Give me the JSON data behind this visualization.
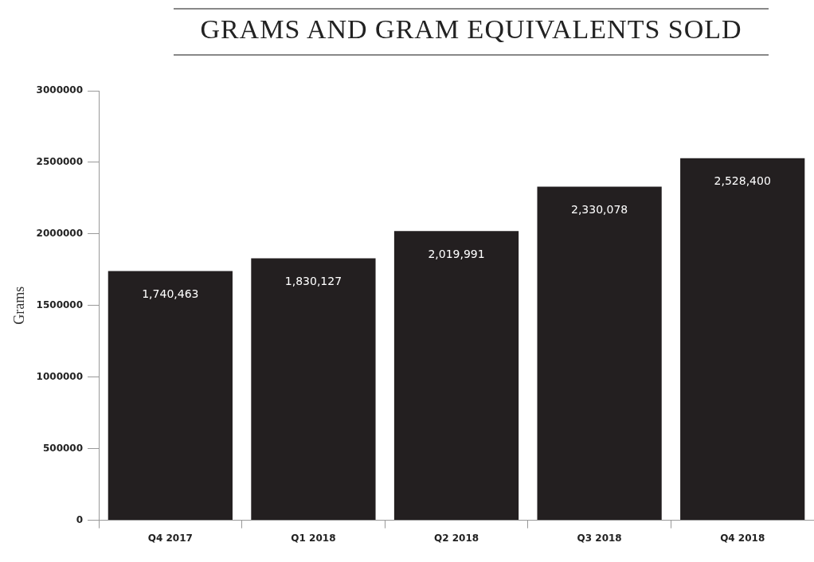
{
  "chart_data": {
    "type": "bar",
    "title": "GRAMS AND GRAM EQUIVALENTS SOLD",
    "ylabel": "Grams",
    "categories": [
      "Q4 2017",
      "Q1 2018",
      "Q2 2018",
      "Q3 2018",
      "Q4 2018"
    ],
    "values": [
      1740463,
      1830127,
      2019991,
      2330078,
      2528400
    ],
    "color": "#231f20",
    "ylim": [
      0,
      3000000
    ],
    "yticks": [
      0,
      500000,
      1000000,
      1500000,
      2000000,
      2500000,
      3000000
    ],
    "value_labels": [
      "1,740,463",
      "1,830,127",
      "2,019,991",
      "2,330,078",
      "2,528,400"
    ],
    "grid": false,
    "legend": false
  }
}
